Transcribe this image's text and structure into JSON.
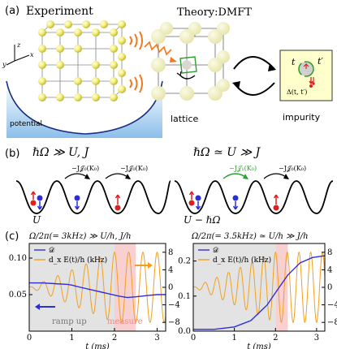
{
  "panel_a": {
    "label": "(a)",
    "experiment": "Experiment",
    "theory": "Theory:DMFT",
    "potential": "potential",
    "lattice": "lattice",
    "impurity": "impurity",
    "axes": {
      "z": "z",
      "y": "y",
      "x": "x"
    },
    "impurity_box": {
      "t": "t",
      "tp": "t′",
      "delta": "Δ(t, t′)"
    }
  },
  "panel_b": {
    "label": "(b)",
    "left_regime": "ℏΩ ≫ U, J",
    "right_regime": "ℏΩ ≃ U ≫ J",
    "hop_left_1": "−J𝒥₀(K₀)",
    "hop_left_2": "−J𝒥₀(K₀)",
    "hop_right_1": "−J𝒥₁(K₀)",
    "hop_right_2": "−J𝒥₀(K₀)",
    "u_left": "U",
    "u_right": "U − ℏΩ"
  },
  "panel_c": {
    "label": "(c)",
    "title_left": "Ω/2π(= 3kHz) ≫ U/h, J/h",
    "title_right": "Ω/2π(= 3.5kHz) ≃ U/h ≫ J/h",
    "legend_d": "𝒟",
    "legend_e": "d_x E(t)/h (kHz)",
    "ramp_up": "ramp up",
    "measure": "measure"
  },
  "colors": {
    "blue": "#2d2de0",
    "orange": "#f0a020",
    "red": "#e02020",
    "green": "#30a030",
    "shade_gray": "#dcdcdc",
    "shade_pink": "#f7c8c8"
  },
  "chart_data": [
    {
      "type": "line",
      "xlabel": "t (ms)",
      "xlim": [
        0,
        3.2
      ],
      "x_ticks": [
        "0",
        "1",
        "2",
        "3"
      ],
      "ylim_left": [
        0.0,
        0.12
      ],
      "y_ticks_left": [
        "0.05",
        "0.10"
      ],
      "ylim_right": [
        -10,
        10
      ],
      "y_ticks_right": [
        "−8",
        "−4",
        "0",
        "4",
        "8"
      ],
      "series": [
        {
          "name": "𝒟",
          "axis": "left",
          "x": [
            0,
            0.3,
            0.6,
            0.9,
            1.0,
            1.2,
            1.5,
            1.8,
            2.1,
            2.3,
            2.5,
            2.8,
            3.0,
            3.2
          ],
          "values": [
            0.066,
            0.066,
            0.065,
            0.064,
            0.063,
            0.06,
            0.056,
            0.052,
            0.048,
            0.046,
            0.047,
            0.049,
            0.05,
            0.05
          ]
        },
        {
          "name": "d_x E(t)/h (kHz)",
          "axis": "right",
          "frequency_khz": 3,
          "amplitude_ramp": [
            [
              0,
              0
            ],
            [
              2,
              8
            ],
            [
              3.2,
              8
            ]
          ],
          "offset": 0
        }
      ],
      "shaded": [
        {
          "label": "ramp up",
          "from": 0,
          "to": 2
        },
        {
          "label": "measure",
          "from": 2.0,
          "to": 2.5
        }
      ]
    },
    {
      "type": "line",
      "xlabel": "t (ms)",
      "xlim": [
        0,
        3.2
      ],
      "x_ticks": [
        "0",
        "1",
        "2",
        "3"
      ],
      "ylim_left": [
        0.0,
        0.25
      ],
      "y_ticks_left": [
        "0.0",
        "0.1",
        "0.2"
      ],
      "ylim_right": [
        -10,
        10
      ],
      "y_ticks_right": [
        "−8",
        "−4",
        "0",
        "4",
        "8"
      ],
      "series": [
        {
          "name": "𝒟",
          "axis": "left",
          "x": [
            0,
            0.5,
            1.0,
            1.4,
            1.8,
            2.0,
            2.3,
            2.6,
            2.9,
            3.2
          ],
          "values": [
            0.005,
            0.005,
            0.012,
            0.03,
            0.075,
            0.11,
            0.16,
            0.195,
            0.21,
            0.215
          ]
        },
        {
          "name": "d_x E(t)/h (kHz)",
          "axis": "right",
          "frequency_khz": 3.5,
          "amplitude_ramp": [
            [
              0,
              0
            ],
            [
              2,
              8
            ],
            [
              3.2,
              8
            ]
          ],
          "offset": 0
        }
      ],
      "shaded": [
        {
          "label": "",
          "from": 0,
          "to": 2
        },
        {
          "label": "",
          "from": 2.0,
          "to": 2.3
        }
      ]
    }
  ]
}
